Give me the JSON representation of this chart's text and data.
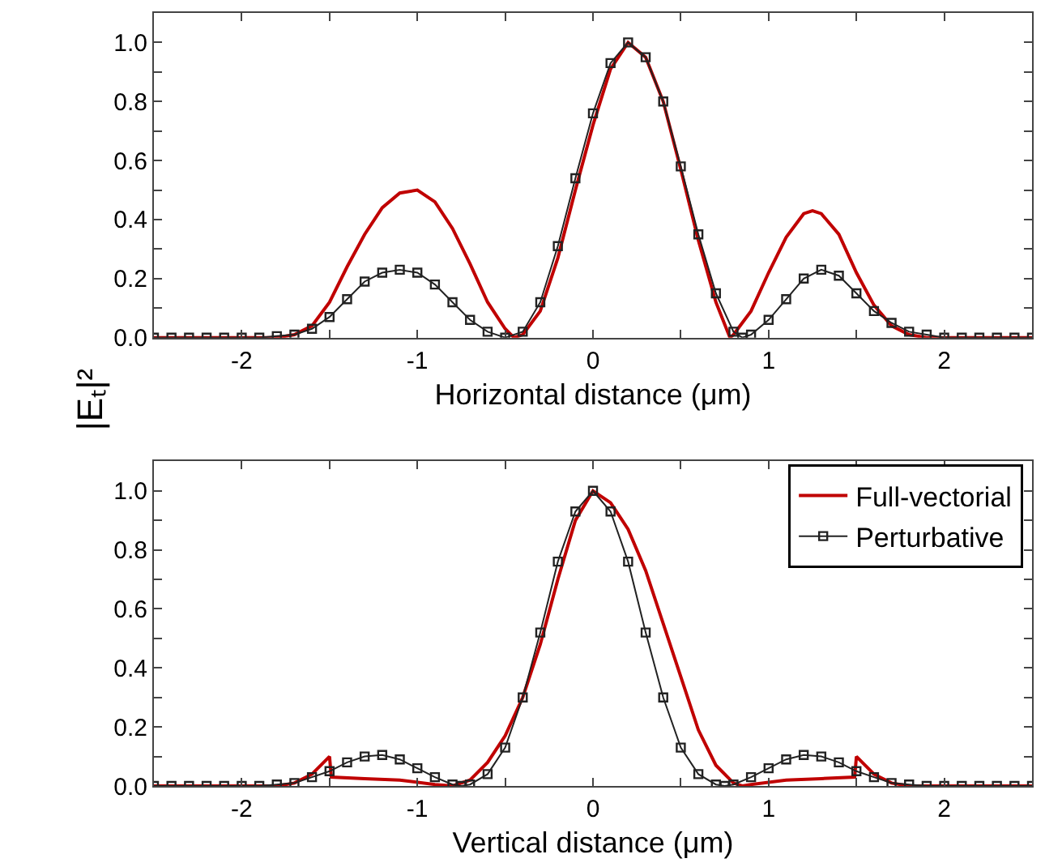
{
  "chart_data": [
    {
      "type": "line",
      "xlabel": "Horizontal distance (μm)",
      "ylabel": "|Eₜ|²",
      "xlim": [
        -2.5,
        2.5
      ],
      "ylim": [
        0,
        1.1
      ],
      "xticks": [
        -2,
        {
          "value": -1.5,
          "label": null
        },
        -1,
        {
          "value": -0.5,
          "label": null
        },
        0,
        {
          "value": 0.5,
          "label": null
        },
        1,
        {
          "value": 1.5,
          "label": null
        },
        2
      ],
      "yticks": [
        {
          "value": 0,
          "label": "0.0"
        },
        {
          "value": 0.1,
          "label": null
        },
        {
          "value": 0.2,
          "label": "0.2"
        },
        {
          "value": 0.3,
          "label": null
        },
        {
          "value": 0.4,
          "label": "0.4"
        },
        {
          "value": 0.5,
          "label": null
        },
        {
          "value": 0.6,
          "label": "0.6"
        },
        {
          "value": 0.7,
          "label": null
        },
        {
          "value": 0.8,
          "label": "0.8"
        },
        {
          "value": 0.9,
          "label": null
        },
        {
          "value": 1.0,
          "label": "1.0"
        }
      ],
      "grid": false,
      "legend": false,
      "series": [
        {
          "color": "#c00000",
          "marker": "none",
          "line_style": "solid",
          "x": [
            -2.5,
            -2.2,
            -1.9,
            -1.8,
            -1.7,
            -1.6,
            -1.5,
            -1.4,
            -1.3,
            -1.2,
            -1.1,
            -1.0,
            -0.9,
            -0.8,
            -0.7,
            -0.6,
            -0.5,
            -0.45,
            -0.4,
            -0.3,
            -0.2,
            -0.1,
            0,
            0.1,
            0.2,
            0.3,
            0.4,
            0.5,
            0.6,
            0.7,
            0.78,
            0.8,
            0.9,
            1.0,
            1.1,
            1.2,
            1.25,
            1.3,
            1.4,
            1.5,
            1.6,
            1.7,
            1.8,
            1.9,
            2.2,
            2.5
          ],
          "values": [
            0,
            0,
            0,
            0,
            0.01,
            0.04,
            0.12,
            0.24,
            0.35,
            0.44,
            0.49,
            0.5,
            0.46,
            0.37,
            0.25,
            0.12,
            0.03,
            0,
            0.01,
            0.09,
            0.27,
            0.5,
            0.72,
            0.91,
            1.0,
            0.95,
            0.8,
            0.57,
            0.33,
            0.12,
            0,
            0.01,
            0.09,
            0.22,
            0.34,
            0.42,
            0.43,
            0.42,
            0.35,
            0.22,
            0.11,
            0.04,
            0.01,
            0,
            0,
            0
          ]
        },
        {
          "color": "#222222",
          "marker": "square",
          "line_style": "solid",
          "x": [
            -2.5,
            -2.4,
            -2.3,
            -2.2,
            -2.1,
            -2.0,
            -1.9,
            -1.8,
            -1.7,
            -1.6,
            -1.5,
            -1.4,
            -1.3,
            -1.2,
            -1.1,
            -1.0,
            -0.9,
            -0.8,
            -0.7,
            -0.6,
            -0.5,
            -0.4,
            -0.3,
            -0.2,
            -0.1,
            0,
            0.1,
            0.2,
            0.3,
            0.4,
            0.5,
            0.6,
            0.7,
            0.8,
            0.85,
            0.9,
            1.0,
            1.1,
            1.2,
            1.3,
            1.4,
            1.5,
            1.6,
            1.7,
            1.8,
            1.9,
            2.0,
            2.1,
            2.2,
            2.3,
            2.4,
            2.5
          ],
          "values": [
            0,
            0,
            0,
            0,
            0,
            0,
            0,
            0.005,
            0.01,
            0.03,
            0.07,
            0.13,
            0.19,
            0.22,
            0.23,
            0.22,
            0.18,
            0.12,
            0.06,
            0.02,
            0,
            0.02,
            0.12,
            0.31,
            0.54,
            0.76,
            0.93,
            1.0,
            0.95,
            0.8,
            0.58,
            0.35,
            0.15,
            0.02,
            0,
            0.01,
            0.06,
            0.13,
            0.2,
            0.23,
            0.21,
            0.15,
            0.09,
            0.05,
            0.02,
            0.01,
            0,
            0,
            0,
            0,
            0,
            0
          ]
        }
      ]
    },
    {
      "type": "line",
      "xlabel": "Vertical distance (μm)",
      "xlim": [
        -2.5,
        2.5
      ],
      "ylim": [
        0,
        1.1
      ],
      "xticks": [
        -2,
        {
          "value": -1.5,
          "label": null
        },
        -1,
        {
          "value": -0.5,
          "label": null
        },
        0,
        {
          "value": 0.5,
          "label": null
        },
        1,
        {
          "value": 1.5,
          "label": null
        },
        2
      ],
      "yticks": [
        {
          "value": 0,
          "label": "0.0"
        },
        {
          "value": 0.1,
          "label": null
        },
        {
          "value": 0.2,
          "label": "0.2"
        },
        {
          "value": 0.3,
          "label": null
        },
        {
          "value": 0.4,
          "label": "0.4"
        },
        {
          "value": 0.5,
          "label": null
        },
        {
          "value": 0.6,
          "label": "0.6"
        },
        {
          "value": 0.7,
          "label": null
        },
        {
          "value": 0.8,
          "label": "0.8"
        },
        {
          "value": 0.9,
          "label": null
        },
        {
          "value": 1.0,
          "label": "1.0"
        }
      ],
      "grid": false,
      "legend": "top right",
      "series": [
        {
          "name": "Full-vectorial",
          "color": "#c00000",
          "marker": "none",
          "line_style": "solid",
          "x": [
            -2.5,
            -2.2,
            -1.9,
            -1.8,
            -1.7,
            -1.6,
            -1.5,
            -1.49,
            -1.3,
            -1.1,
            -0.9,
            -0.8,
            -0.7,
            -0.6,
            -0.5,
            -0.4,
            -0.3,
            -0.2,
            -0.1,
            0,
            0.1,
            0.2,
            0.3,
            0.4,
            0.5,
            0.6,
            0.7,
            0.8,
            0.85,
            0.9,
            1.1,
            1.3,
            1.49,
            1.5,
            1.6,
            1.7,
            1.8,
            1.9,
            2.2,
            2.5
          ],
          "values": [
            0,
            0,
            0,
            0,
            0.01,
            0.04,
            0.1,
            0.03,
            0.025,
            0.02,
            0.005,
            0,
            0.02,
            0.08,
            0.17,
            0.3,
            0.48,
            0.7,
            0.9,
            1.0,
            0.96,
            0.87,
            0.73,
            0.55,
            0.37,
            0.19,
            0.07,
            0.01,
            0,
            0.005,
            0.02,
            0.025,
            0.03,
            0.1,
            0.04,
            0.01,
            0,
            0,
            0,
            0
          ]
        },
        {
          "name": "Perturbative",
          "color": "#222222",
          "marker": "square",
          "line_style": "solid",
          "x": [
            -2.5,
            -2.4,
            -2.3,
            -2.2,
            -2.1,
            -2.0,
            -1.9,
            -1.8,
            -1.7,
            -1.6,
            -1.5,
            -1.4,
            -1.3,
            -1.2,
            -1.1,
            -1.0,
            -0.9,
            -0.8,
            -0.75,
            -0.7,
            -0.6,
            -0.5,
            -0.4,
            -0.3,
            -0.2,
            -0.1,
            0,
            0.1,
            0.2,
            0.3,
            0.4,
            0.5,
            0.6,
            0.7,
            0.75,
            0.8,
            0.9,
            1.0,
            1.1,
            1.2,
            1.3,
            1.4,
            1.5,
            1.6,
            1.7,
            1.8,
            1.9,
            2.0,
            2.1,
            2.2,
            2.3,
            2.4,
            2.5
          ],
          "values": [
            0,
            0,
            0,
            0,
            0,
            0,
            0,
            0.005,
            0.01,
            0.03,
            0.05,
            0.08,
            0.1,
            0.105,
            0.09,
            0.06,
            0.03,
            0.005,
            0,
            0.005,
            0.04,
            0.13,
            0.3,
            0.52,
            0.76,
            0.93,
            1.0,
            0.93,
            0.76,
            0.52,
            0.3,
            0.13,
            0.04,
            0.005,
            0,
            0.005,
            0.03,
            0.06,
            0.09,
            0.105,
            0.1,
            0.08,
            0.05,
            0.03,
            0.01,
            0.005,
            0,
            0,
            0,
            0,
            0,
            0,
            0
          ]
        }
      ]
    }
  ]
}
